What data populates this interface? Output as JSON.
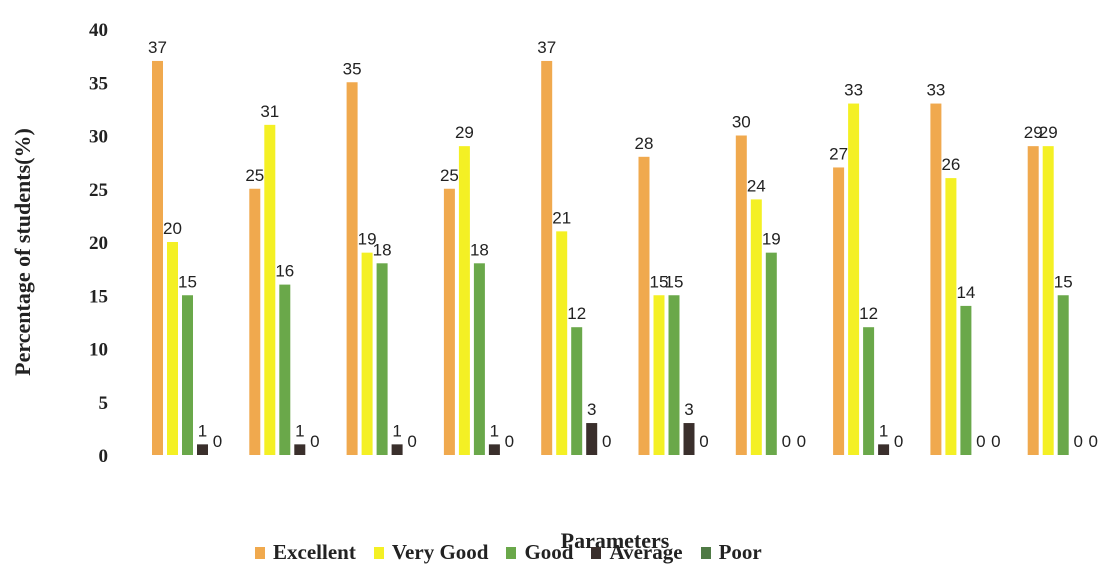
{
  "chart_data": {
    "type": "bar",
    "xlabel": "Parameters",
    "ylabel": "Percentage of students(%)",
    "ylim": [
      0,
      40
    ],
    "yticks": [
      "0",
      "5",
      "10",
      "15",
      "20",
      "25",
      "30",
      "35",
      "40"
    ],
    "categories": [
      "",
      "",
      "",
      "",
      "",
      "",
      "",
      "",
      "",
      ""
    ],
    "series": [
      {
        "name": "Excellent",
        "color": "#f0a94e",
        "values": [
          37,
          25,
          35,
          25,
          37,
          28,
          30,
          27,
          33,
          29
        ]
      },
      {
        "name": "Very Good",
        "color": "#f4f024",
        "values": [
          20,
          31,
          19,
          29,
          21,
          15,
          24,
          33,
          26,
          29
        ]
      },
      {
        "name": "Good",
        "color": "#6aa84a",
        "values": [
          15,
          16,
          18,
          18,
          12,
          15,
          19,
          12,
          14,
          15
        ]
      },
      {
        "name": "Average",
        "color": "#3a2f2c",
        "values": [
          1,
          1,
          1,
          1,
          3,
          3,
          0,
          1,
          0,
          0
        ]
      },
      {
        "name": "Poor",
        "color": "#4f7a45",
        "values": [
          0,
          0,
          0,
          0,
          0,
          0,
          0,
          0,
          0,
          0
        ]
      }
    ],
    "legend_position": "bottom",
    "grid": false
  }
}
